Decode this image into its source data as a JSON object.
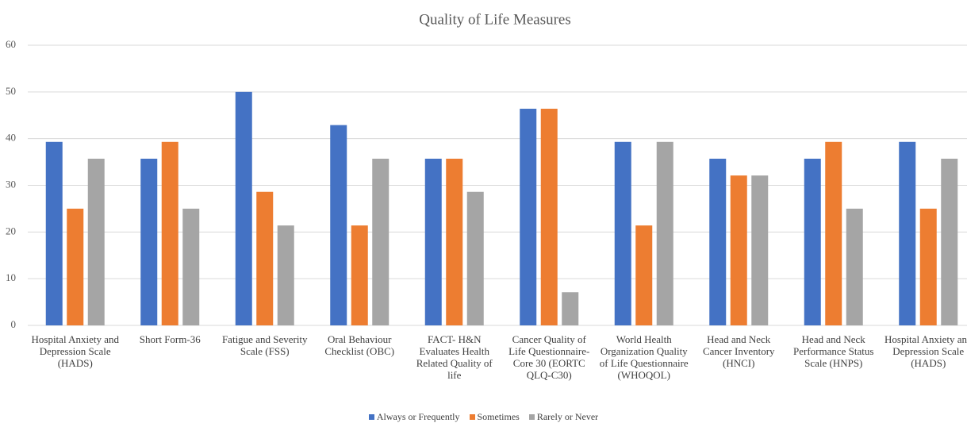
{
  "chart_data": {
    "type": "bar",
    "title": "Quality of Life Measures",
    "categories": [
      "Hospital Anxiety and Depression Scale (HADS)",
      "Short Form-36",
      "Fatigue and Severity Scale (FSS)",
      "Oral Behaviour Checklist (OBC)",
      "FACT- H&N Evaluates Health Related Quality of life",
      "Cancer Quality of Life Questionnaire- Core 30 (EORTC QLQ-C30)",
      "World Health Organization Quality of Life Questionnaire (WHOQOL)",
      "Head and Neck Cancer Inventory (HNCI)",
      "Head and Neck Performance Status Scale (HNPS)",
      "Hospital Anxiety and Depression Scale (HADS)"
    ],
    "series": [
      {
        "name": "Always or Frequently",
        "color": "#4472c4",
        "values": [
          39.3,
          35.7,
          50,
          42.9,
          35.7,
          46.4,
          39.3,
          35.7,
          35.7,
          39.3
        ]
      },
      {
        "name": "Sometimes",
        "color": "#ed7d31",
        "values": [
          25,
          39.3,
          28.6,
          21.4,
          35.7,
          46.4,
          21.4,
          32.1,
          39.3,
          25
        ]
      },
      {
        "name": "Rarely or Never",
        "color": "#a5a5a5",
        "values": [
          35.7,
          25,
          21.4,
          35.7,
          28.6,
          7.1,
          39.3,
          32.1,
          25,
          35.7
        ]
      }
    ],
    "ylim": [
      0,
      60
    ],
    "yticks": [
      0,
      10,
      20,
      30,
      40,
      50,
      60
    ],
    "grid": true,
    "legend": "bottom"
  }
}
